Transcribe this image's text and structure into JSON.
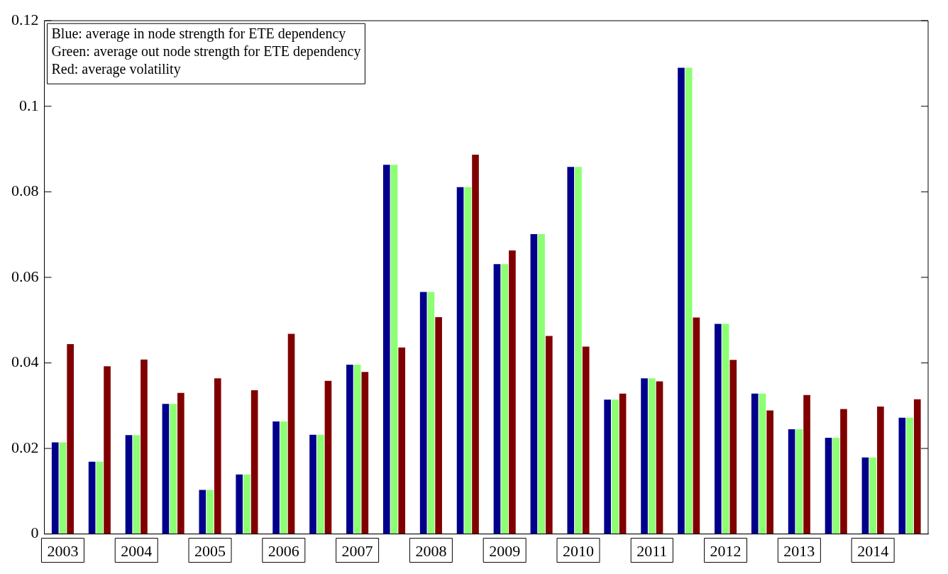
{
  "chart_data": {
    "type": "bar",
    "categories": [
      "2003",
      null,
      "2004",
      null,
      "2005",
      null,
      "2006",
      null,
      "2007",
      null,
      "2008",
      null,
      "2009",
      null,
      "2010",
      null,
      "2011",
      null,
      "2012",
      null,
      "2013",
      null,
      "2014",
      null
    ],
    "series": [
      {
        "color": "#00008b",
        "values": [
          0.0214,
          0.0169,
          0.0231,
          0.0304,
          0.0103,
          0.0139,
          0.0263,
          0.0232,
          0.0396,
          0.0863,
          0.0566,
          0.0811,
          0.0631,
          0.0701,
          0.0858,
          0.0314,
          0.0364,
          0.109,
          0.0491,
          0.0328,
          0.0245,
          0.0225,
          0.0179,
          0.0272
        ]
      },
      {
        "color": "#8cff72",
        "values": [
          0.0214,
          0.0169,
          0.0231,
          0.0304,
          0.0103,
          0.0139,
          0.0263,
          0.0232,
          0.0396,
          0.0863,
          0.0566,
          0.0811,
          0.0631,
          0.0701,
          0.0858,
          0.0314,
          0.0364,
          0.109,
          0.0491,
          0.0328,
          0.0245,
          0.0225,
          0.0179,
          0.0272
        ]
      },
      {
        "color": "#800000",
        "values": [
          0.0444,
          0.0392,
          0.0408,
          0.033,
          0.0364,
          0.0336,
          0.0468,
          0.0358,
          0.0379,
          0.0436,
          0.0507,
          0.0887,
          0.0663,
          0.0463,
          0.0438,
          0.0328,
          0.0357,
          0.0506,
          0.0407,
          0.0289,
          0.0325,
          0.0292,
          0.0298,
          0.0315
        ]
      }
    ],
    "ylim": [
      0,
      0.12
    ],
    "yticks": [
      0,
      0.02,
      0.04,
      0.06,
      0.08,
      0.1,
      0.12
    ],
    "grid": false,
    "annotations": [
      "Blue: average in node strength for ETE dependency",
      "Green: average out node strength for ETE dependency",
      "Red: average volatility"
    ]
  }
}
